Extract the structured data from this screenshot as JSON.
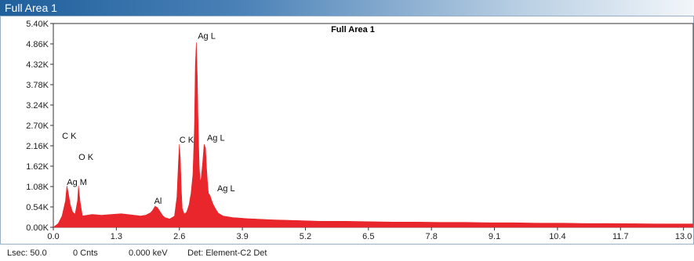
{
  "window": {
    "title": "Full Area 1"
  },
  "chart_data": {
    "type": "area",
    "title": "Full Area 1",
    "xlabel": "",
    "ylabel": "",
    "xlim": [
      0.0,
      13.2
    ],
    "ylim": [
      0,
      5400
    ],
    "x_ticks": [
      "0.0",
      "1.3",
      "2.6",
      "3.9",
      "5.2",
      "6.5",
      "7.8",
      "9.1",
      "10.4",
      "11.7",
      "13.0"
    ],
    "x_tick_values": [
      0.0,
      1.3,
      2.6,
      3.9,
      5.2,
      6.5,
      7.8,
      9.1,
      10.4,
      11.7,
      13.0
    ],
    "y_ticks": [
      "0.00K",
      "0.54K",
      "1.08K",
      "1.62K",
      "2.16K",
      "2.70K",
      "3.24K",
      "3.78K",
      "4.32K",
      "4.86K",
      "5.40K"
    ],
    "y_tick_values": [
      0,
      540,
      1080,
      1620,
      2160,
      2700,
      3240,
      3780,
      4320,
      4860,
      5400
    ],
    "fill_color": "#e8262b",
    "grid": false,
    "series": [
      {
        "x": [
          0.0,
          0.1,
          0.18,
          0.25,
          0.28,
          0.31,
          0.35,
          0.4,
          0.45,
          0.5,
          0.52,
          0.55,
          0.6,
          0.7,
          0.8,
          1.0,
          1.2,
          1.4,
          1.6,
          1.8,
          1.9,
          2.0,
          2.05,
          2.1,
          2.15,
          2.2,
          2.25,
          2.3,
          2.4,
          2.5,
          2.55,
          2.58,
          2.6,
          2.62,
          2.64,
          2.66,
          2.7,
          2.75,
          2.8,
          2.84,
          2.88,
          2.91,
          2.93,
          2.95,
          2.97,
          2.99,
          3.01,
          3.03,
          3.05,
          3.08,
          3.11,
          3.14,
          3.16,
          3.18,
          3.2,
          3.23,
          3.27,
          3.3,
          3.35,
          3.4,
          3.5,
          3.7,
          4.0,
          4.5,
          5.0,
          5.5,
          6.0,
          6.5,
          7.0,
          7.5,
          8.0,
          8.5,
          9.0,
          9.5,
          10.0,
          10.5,
          11.0,
          11.5,
          12.0,
          12.5,
          13.2
        ],
        "y": [
          0,
          100,
          300,
          700,
          1100,
          900,
          600,
          400,
          350,
          700,
          1100,
          700,
          300,
          320,
          340,
          320,
          340,
          360,
          330,
          300,
          320,
          380,
          450,
          560,
          520,
          420,
          320,
          260,
          220,
          300,
          800,
          1700,
          2200,
          1800,
          1000,
          500,
          350,
          400,
          600,
          900,
          1400,
          2600,
          4300,
          4900,
          4000,
          2600,
          1600,
          1200,
          1300,
          1700,
          2200,
          2100,
          1600,
          1200,
          900,
          850,
          700,
          600,
          480,
          380,
          300,
          260,
          230,
          200,
          180,
          160,
          160,
          150,
          140,
          140,
          130,
          130,
          120,
          120,
          110,
          110,
          100,
          100,
          95,
          90,
          90
        ]
      }
    ],
    "annotations": [
      {
        "text": "Ag L",
        "x": 2.98,
        "y": 5000
      },
      {
        "text": "C  K",
        "x": 0.18,
        "y": 2350
      },
      {
        "text": "O  K",
        "x": 0.52,
        "y": 1790
      },
      {
        "text": "Ag M",
        "x": 0.28,
        "y": 1120
      },
      {
        "text": "Al",
        "x": 2.08,
        "y": 620
      },
      {
        "text": "C  K",
        "x": 2.6,
        "y": 2240
      },
      {
        "text": "Ag L",
        "x": 3.17,
        "y": 2300
      },
      {
        "text": "Ag L",
        "x": 3.38,
        "y": 960
      }
    ]
  },
  "status": {
    "lsec": "Lsec: 50.0",
    "cnts": "0 Cnts",
    "kev": "0.000 keV",
    "det": "Det: Element-C2 Det"
  }
}
